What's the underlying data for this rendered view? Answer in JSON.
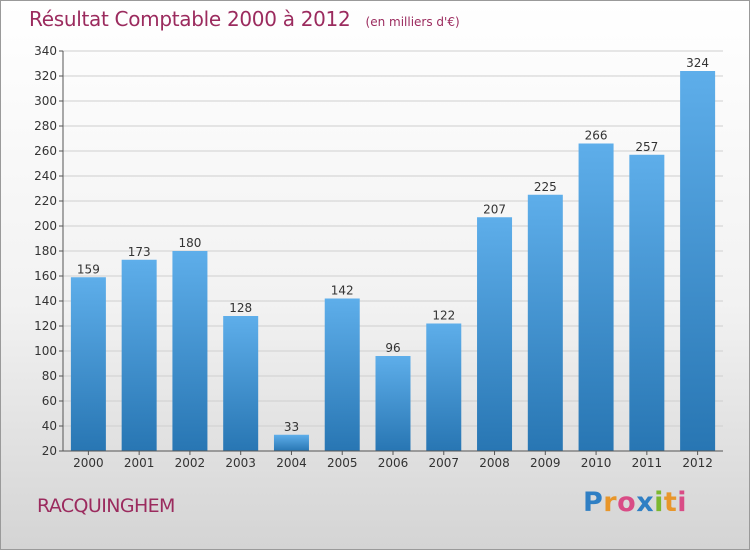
{
  "header": {
    "title": "Résultat Comptable 2000 à 2012",
    "subtitle": "(en milliers d'€)"
  },
  "footer": {
    "commune": "RACQUINGHEM",
    "brand": "Proxiti",
    "brand_colors": [
      "#2f7fc4",
      "#e8962a",
      "#d94c86",
      "#2f7fc4",
      "#7cb82f",
      "#e8962a",
      "#d94c86"
    ]
  },
  "colors": {
    "accent": "#9b2b5e",
    "bar_top": "#5eaeea",
    "bar_bottom": "#2876b3"
  },
  "chart_data": {
    "type": "bar",
    "title": "Résultat Comptable 2000 à 2012",
    "subtitle": "(en milliers d'€)",
    "xlabel": "",
    "ylabel": "",
    "categories": [
      "2000",
      "2001",
      "2002",
      "2003",
      "2004",
      "2005",
      "2006",
      "2007",
      "2008",
      "2009",
      "2010",
      "2011",
      "2012"
    ],
    "values": [
      159,
      173,
      180,
      128,
      33,
      142,
      96,
      122,
      207,
      225,
      266,
      257,
      324
    ],
    "ylim": [
      20,
      340
    ],
    "yticks": [
      20,
      40,
      60,
      80,
      100,
      120,
      140,
      160,
      180,
      200,
      220,
      240,
      260,
      280,
      300,
      320,
      340
    ],
    "grid": true
  }
}
